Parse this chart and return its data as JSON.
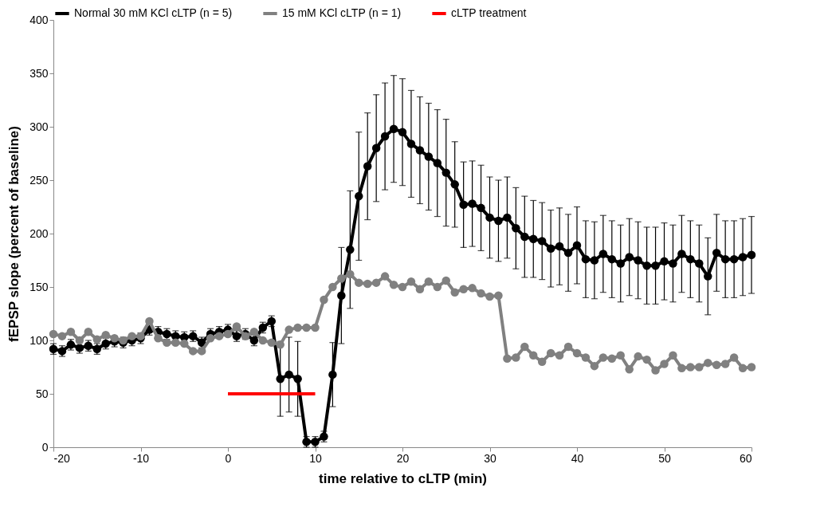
{
  "chart_data": {
    "type": "line",
    "xlabel": "time relative to cLTP (min)",
    "ylabel": "fEPSP slope (percent of baseline)",
    "xlim": [
      -20,
      60
    ],
    "xticks": [
      -20,
      -10,
      0,
      10,
      20,
      30,
      40,
      50,
      60
    ],
    "ylim": [
      0,
      400
    ],
    "yticks": [
      0,
      50,
      100,
      150,
      200,
      250,
      300,
      350,
      400
    ],
    "grid": false,
    "legend": "top",
    "series": [
      {
        "name": "Normal 30 mM KCl cLTP (n = 5)",
        "color": "#000000",
        "marker": "circle",
        "x": [
          -20,
          -19,
          -18,
          -17,
          -16,
          -15,
          -14,
          -13,
          -12,
          -11,
          -10,
          -9,
          -8,
          -7,
          -6,
          -5,
          -4,
          -3,
          -2,
          -1,
          0,
          1,
          2,
          3,
          4,
          5,
          6,
          7,
          8,
          9,
          10,
          11,
          12,
          13,
          14,
          15,
          16,
          17,
          18,
          19,
          20,
          21,
          22,
          23,
          24,
          25,
          26,
          27,
          28,
          29,
          30,
          31,
          32,
          33,
          34,
          35,
          36,
          37,
          38,
          39,
          40,
          41,
          42,
          43,
          44,
          45,
          46,
          47,
          48,
          49,
          50,
          51,
          52,
          53,
          54,
          55,
          56,
          57,
          58,
          59,
          60
        ],
        "values": [
          92,
          90,
          96,
          93,
          95,
          92,
          97,
          99,
          98,
          100,
          102,
          110,
          108,
          106,
          104,
          103,
          104,
          98,
          106,
          108,
          110,
          104,
          106,
          100,
          112,
          118,
          64,
          68,
          64,
          5,
          5,
          10,
          68,
          142,
          185,
          235,
          263,
          280,
          291,
          298,
          295,
          284,
          278,
          272,
          266,
          257,
          246,
          227,
          228,
          224,
          215,
          212,
          215,
          205,
          197,
          195,
          193,
          186,
          188,
          182,
          189,
          176,
          175,
          181,
          176,
          172,
          178,
          175,
          170,
          170,
          174,
          172,
          181,
          176,
          172,
          160,
          182,
          176,
          176,
          178,
          180
        ],
        "errors": [
          5,
          5,
          5,
          5,
          5,
          5,
          5,
          5,
          5,
          5,
          5,
          5,
          5,
          5,
          5,
          5,
          5,
          5,
          5,
          5,
          5,
          5,
          5,
          5,
          5,
          5,
          35,
          35,
          35,
          5,
          5,
          5,
          30,
          45,
          55,
          60,
          50,
          50,
          50,
          50,
          50,
          50,
          50,
          50,
          50,
          50,
          40,
          40,
          40,
          40,
          38,
          38,
          38,
          38,
          38,
          36,
          36,
          36,
          36,
          36,
          36,
          36,
          36,
          36,
          36,
          36,
          36,
          36,
          36,
          36,
          36,
          36,
          36,
          36,
          36,
          36,
          36,
          36,
          36,
          36,
          36
        ]
      },
      {
        "name": "15 mM KCl cLTP (n = 1)",
        "color": "#808080",
        "marker": "circle",
        "x": [
          -20,
          -19,
          -18,
          -17,
          -16,
          -15,
          -14,
          -13,
          -12,
          -11,
          -10,
          -9,
          -8,
          -7,
          -6,
          -5,
          -4,
          -3,
          -2,
          -1,
          0,
          1,
          2,
          3,
          4,
          5,
          6,
          7,
          8,
          9,
          10,
          11,
          12,
          13,
          14,
          15,
          16,
          17,
          18,
          19,
          20,
          21,
          22,
          23,
          24,
          25,
          26,
          27,
          28,
          29,
          30,
          31,
          32,
          33,
          34,
          35,
          36,
          37,
          38,
          39,
          40,
          41,
          42,
          43,
          44,
          45,
          46,
          47,
          48,
          49,
          50,
          51,
          52,
          53,
          54,
          55,
          56,
          57,
          58,
          59,
          60
        ],
        "values": [
          106,
          104,
          108,
          100,
          108,
          101,
          105,
          102,
          100,
          104,
          104,
          118,
          102,
          98,
          98,
          97,
          90,
          90,
          102,
          104,
          106,
          113,
          104,
          108,
          100,
          98,
          96,
          110,
          112,
          112,
          112,
          138,
          150,
          158,
          162,
          154,
          153,
          154,
          160,
          152,
          150,
          155,
          148,
          155,
          150,
          156,
          145,
          148,
          149,
          144,
          141,
          142,
          83,
          84,
          94,
          86,
          80,
          88,
          86,
          94,
          88,
          84,
          76,
          84,
          83,
          86,
          73,
          85,
          82,
          72,
          78,
          86,
          74,
          75,
          75,
          79,
          77,
          78,
          84,
          74,
          75
        ]
      },
      {
        "name": "cLTP treatment",
        "color": "#ff0000",
        "marker": "none",
        "x": [
          0,
          10
        ],
        "values": [
          50,
          50
        ]
      }
    ]
  }
}
